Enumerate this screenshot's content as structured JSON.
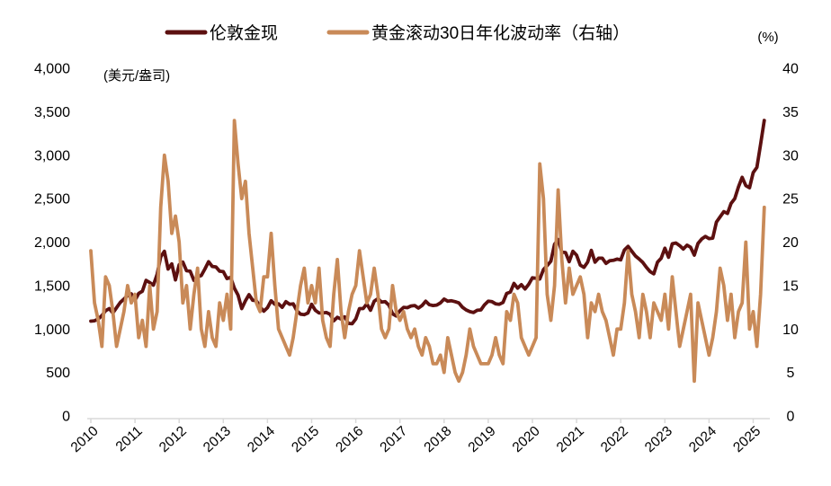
{
  "chart_data": {
    "type": "line",
    "title": "",
    "unit_left": "(美元/盎司)",
    "unit_right": "(%)",
    "legend_position": "top",
    "grid": false,
    "x_ticks": [
      "2010",
      "2011",
      "2012",
      "2013",
      "2014",
      "2015",
      "2016",
      "2017",
      "2018",
      "2019",
      "2020",
      "2021",
      "2022",
      "2023",
      "2024",
      "2025"
    ],
    "left_axis": {
      "min": 0,
      "max": 4000,
      "step": 500,
      "tick_labels": [
        "0",
        "500",
        "1,000",
        "1,500",
        "2,000",
        "2,500",
        "3,000",
        "3,500",
        "4,000"
      ]
    },
    "right_axis": {
      "min": 0,
      "max": 40,
      "step": 5,
      "tick_labels": [
        "0",
        "5",
        "10",
        "15",
        "20",
        "25",
        "30",
        "35",
        "40"
      ]
    },
    "x_monthly_start": "2010-01",
    "x_monthly_end": "2025-04",
    "axis_color": "#D9D9D9",
    "text_color": "#000000",
    "series": [
      {
        "name": "伦敦金现",
        "axis": "left",
        "color": "#5C1010",
        "values": [
          1090,
          1095,
          1115,
          1155,
          1210,
          1235,
          1185,
          1245,
          1305,
          1345,
          1385,
          1405,
          1330,
          1410,
          1435,
          1560,
          1535,
          1505,
          1630,
          1830,
          1895,
          1690,
          1750,
          1565,
          1740,
          1770,
          1670,
          1665,
          1560,
          1600,
          1615,
          1690,
          1775,
          1720,
          1715,
          1665,
          1660,
          1580,
          1595,
          1470,
          1390,
          1235,
          1325,
          1395,
          1330,
          1325,
          1255,
          1205,
          1245,
          1325,
          1285,
          1290,
          1250,
          1315,
          1285,
          1290,
          1210,
          1170,
          1165,
          1185,
          1285,
          1215,
          1185,
          1185,
          1190,
          1170,
          1095,
          1135,
          1115,
          1140,
          1065,
          1060,
          1115,
          1235,
          1235,
          1290,
          1215,
          1320,
          1350,
          1310,
          1315,
          1275,
          1175,
          1150,
          1210,
          1250,
          1245,
          1265,
          1270,
          1240,
          1270,
          1320,
          1280,
          1270,
          1275,
          1300,
          1345,
          1320,
          1325,
          1315,
          1300,
          1250,
          1220,
          1200,
          1190,
          1215,
          1220,
          1280,
          1320,
          1315,
          1290,
          1285,
          1305,
          1410,
          1425,
          1525,
          1470,
          1510,
          1460,
          1515,
          1590,
          1585,
          1575,
          1685,
          1730,
          1780,
          1975,
          2030,
          1885,
          1880,
          1775,
          1895,
          1850,
          1735,
          1710,
          1770,
          1905,
          1770,
          1815,
          1815,
          1755,
          1785,
          1790,
          1805,
          1795,
          1910,
          1950,
          1895,
          1840,
          1805,
          1765,
          1710,
          1660,
          1635,
          1770,
          1815,
          1930,
          1825,
          1980,
          1990,
          1960,
          1920,
          1965,
          1940,
          1850,
          1985,
          2035,
          2065,
          2040,
          2045,
          2230,
          2290,
          2350,
          2330,
          2445,
          2500,
          2635,
          2745,
          2650,
          2625,
          2800,
          2860,
          3125,
          3400
        ]
      },
      {
        "name": "黄金滚动30日年化波动率（右轴）",
        "axis": "right",
        "color": "#C98A58",
        "values": [
          19,
          13,
          11,
          8,
          16,
          15,
          12,
          8,
          10,
          12,
          15,
          13,
          14,
          9,
          11,
          8,
          15,
          10,
          12,
          24,
          30,
          27,
          21,
          23,
          20,
          13,
          15,
          10,
          14,
          17,
          10,
          8,
          12,
          9,
          8,
          13,
          11,
          14,
          10,
          34,
          29,
          25,
          27,
          21,
          17,
          13,
          12,
          16,
          16,
          21,
          15,
          10,
          9,
          8,
          7,
          9,
          12,
          15,
          17,
          13,
          15,
          13,
          17,
          11,
          9,
          8,
          14,
          18,
          12,
          9,
          12,
          14,
          15,
          19,
          16,
          13,
          14,
          17,
          14,
          10,
          9,
          10,
          15,
          12,
          11,
          12,
          10,
          9,
          10,
          8,
          7,
          9,
          8,
          6,
          6,
          7,
          5,
          9,
          7,
          5,
          4,
          5,
          7,
          10,
          8,
          7,
          6,
          6,
          6,
          7,
          9,
          7,
          6,
          12,
          11,
          14,
          13,
          9,
          8,
          7,
          8,
          9,
          29,
          25,
          14,
          11,
          15,
          26,
          18,
          13,
          17,
          14,
          15,
          16,
          14,
          9,
          13,
          12,
          14,
          12,
          11,
          9,
          7,
          10,
          10,
          13,
          19,
          14,
          12,
          9,
          14,
          12,
          9,
          13,
          12,
          11,
          14,
          10,
          16,
          12,
          8,
          10,
          12,
          14,
          4,
          13,
          11,
          9,
          7,
          9,
          12,
          17,
          15,
          11,
          14,
          9,
          12,
          13,
          20,
          10,
          12,
          8,
          14,
          24
        ]
      }
    ]
  }
}
